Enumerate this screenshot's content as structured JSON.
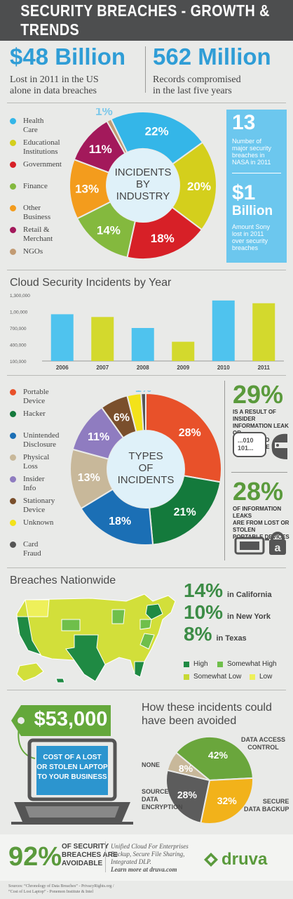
{
  "header": {
    "title": "SECURITY BREACHES - GROWTH & TRENDS"
  },
  "stats": {
    "left": {
      "value": "$48 Billion",
      "line1": "Lost in 2011 in the US",
      "line2": "alone in data breaches"
    },
    "right": {
      "value": "562 Million",
      "line1": "Records compromised",
      "line2": "in the last five years"
    }
  },
  "industry": {
    "center": [
      "INCIDENTS",
      "BY",
      "INDUSTRY"
    ],
    "legend": [
      {
        "l1": "Health",
        "l2": "Care",
        "color": "#34b6e8"
      },
      {
        "l1": "Educational",
        "l2": "Institutions",
        "color": "#d4cf1c"
      },
      {
        "l1": "Government",
        "l2": "",
        "color": "#d72027"
      },
      {
        "l1": "Finance",
        "l2": "",
        "color": "#84b93e"
      },
      {
        "l1": "Other",
        "l2": "Business",
        "color": "#f39c1d"
      },
      {
        "l1": "Retail &",
        "l2": "Merchant",
        "color": "#a3195b"
      },
      {
        "l1": "NGOs",
        "l2": "",
        "color": "#c29b73"
      }
    ]
  },
  "sidebox": {
    "n1": "13",
    "t1": [
      "Number of",
      "major security",
      "breaches in",
      "NASA in 2011"
    ],
    "n2a": "$1",
    "n2b": "Billion",
    "t2": [
      "Amount Sony",
      "lost in 2011",
      "over security",
      "breaches"
    ]
  },
  "cloud": {
    "title": "Cloud Security Incidents by Year"
  },
  "types": {
    "center": [
      "TYPES",
      "OF",
      "INCIDENTS"
    ],
    "legend": [
      {
        "l1": "Portable",
        "l2": "Device",
        "color": "#e8512a"
      },
      {
        "l1": "Hacker",
        "l2": "",
        "color": "#147a3c"
      },
      {
        "l1": "Unintended",
        "l2": "Disclosure",
        "color": "#1b6fb5"
      },
      {
        "l1": "Physical",
        "l2": "Loss",
        "color": "#c8b89a"
      },
      {
        "l1": "Insider",
        "l2": "Info",
        "color": "#8f7cc0"
      },
      {
        "l1": "Stationary",
        "l2": "Device",
        "color": "#7a4f2c"
      },
      {
        "l1": "Unknown",
        "l2": "",
        "color": "#f3e21a"
      },
      {
        "l1": "Card",
        "l2": "Fraud",
        "color": "#555555"
      }
    ],
    "side1": {
      "pct": "29%",
      "txt": [
        "IS A RESULT OF INSIDER",
        "INFORMATION LEAK OR",
        "UNINTENDED DISCLOSURE"
      ],
      "code": [
        "...010",
        "101..."
      ]
    },
    "side2": {
      "pct": "28%",
      "txt": [
        "OF INFORMATION LEAKS",
        "ARE FROM LOST OR STOLEN",
        "PORTABLE DEVICES"
      ]
    }
  },
  "nation": {
    "title": "Breaches Nationwide",
    "rows": [
      {
        "pct": "14%",
        "label": "in California"
      },
      {
        "pct": "10%",
        "label": "in New York"
      },
      {
        "pct": "8%",
        "label": "in Texas"
      }
    ],
    "legend": [
      {
        "label": "High",
        "color": "#1f8a43"
      },
      {
        "label": "Somewhat High",
        "color": "#6fbf4b"
      },
      {
        "label": "Somewhat Low",
        "color": "#c7d935"
      },
      {
        "label": "Low",
        "color": "#eef05a"
      }
    ]
  },
  "laptop": {
    "price": "$53,000",
    "lines": [
      "COST OF A LOST",
      "OR STOLEN LAPTOP",
      "TO YOUR BUSINESS"
    ]
  },
  "avoided": {
    "title1": "How these incidents could",
    "title2": "have been avoided",
    "labels": {
      "dac": [
        "DATA ACCESS",
        "CONTROL"
      ],
      "none": [
        "NONE"
      ],
      "sde": [
        "SOURCE",
        "DATA",
        "ENCRYPTION"
      ],
      "sdb": [
        "SECURE",
        "DATA BACKUP"
      ]
    }
  },
  "footer": {
    "pct": "92%",
    "txt": [
      "OF SECURITY",
      "BREACHES ARE",
      "AVOIDABLE"
    ],
    "info": [
      "Unified Cloud For Enterprises",
      "Backup, Secure File Sharing,",
      "Integrated DLP."
    ],
    "link": "Learn more at druva.com",
    "brand": "druva",
    "sources1": "Sources: “Chronology of Data Breaches” - PrivacyRights.org /",
    "sources2": "“Cost of Lost Laptop” - Ponemon Institute & Intel"
  },
  "chart_data": [
    {
      "type": "pie",
      "title": "INCIDENTS BY INDUSTRY",
      "categories": [
        "Health Care",
        "Educational Institutions",
        "Government",
        "Finance",
        "Other Business",
        "Retail & Merchant",
        "NGOs"
      ],
      "values": [
        22,
        20,
        18,
        14,
        13,
        11,
        1
      ],
      "colors": [
        "#34b6e8",
        "#d4cf1c",
        "#d72027",
        "#84b93e",
        "#f39c1d",
        "#a3195b",
        "#c29b73"
      ]
    },
    {
      "type": "bar",
      "title": "Cloud Security Incidents by Year",
      "categories": [
        "2006",
        "2007",
        "2008",
        "2009",
        "2010",
        "2011"
      ],
      "values": [
        950000,
        900000,
        700000,
        450000,
        1200000,
        1150000
      ],
      "colors": [
        "#4fc3ee",
        "#d3d92d",
        "#4fc3ee",
        "#d3d92d",
        "#4fc3ee",
        "#d3d92d"
      ],
      "yticks": [
        "1,300,000",
        "1,00,000",
        "700,000",
        "400,000",
        "100,000"
      ],
      "ylim": [
        100000,
        1300000
      ]
    },
    {
      "type": "pie",
      "title": "TYPES OF INCIDENTS",
      "categories": [
        "Portable Device",
        "Hacker",
        "Unintended Disclosure",
        "Physical Loss",
        "Insider Info",
        "Stationary Device",
        "Unknown",
        "Card Fraud"
      ],
      "values": [
        28,
        21,
        18,
        13,
        11,
        6,
        3,
        1
      ],
      "colors": [
        "#e8512a",
        "#147a3c",
        "#1b6fb5",
        "#c8b89a",
        "#8f7cc0",
        "#7a4f2c",
        "#f3e21a",
        "#555555"
      ]
    },
    {
      "type": "pie",
      "title": "How these incidents could have been avoided",
      "categories": [
        "Data Access Control",
        "Secure Data Backup",
        "Source Data Encryption",
        "None"
      ],
      "values": [
        42,
        32,
        28,
        8
      ],
      "colors": [
        "#6aa63c",
        "#f2b21a",
        "#5c5c5c",
        "#c8b89a"
      ]
    }
  ]
}
